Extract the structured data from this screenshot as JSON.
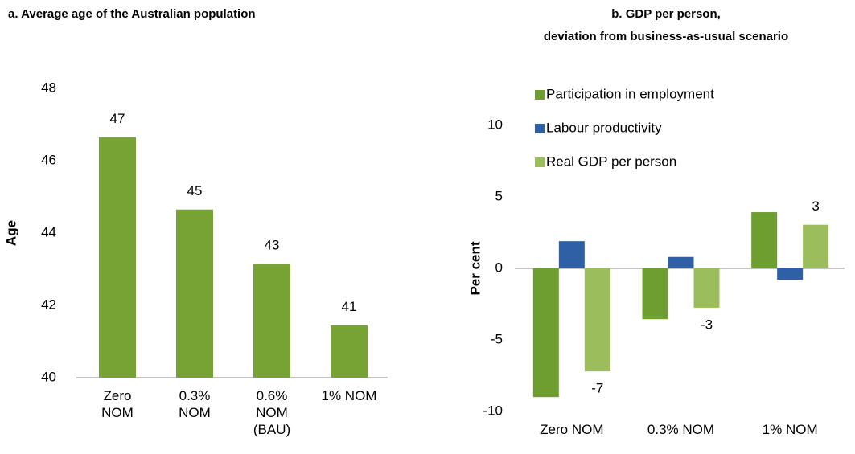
{
  "chart_data": [
    {
      "type": "bar",
      "title": "a. Average age of the Australian population",
      "ylabel": "Age",
      "categories": [
        "Zero NOM",
        "0.3% NOM",
        "0.6% NOM (BAU)",
        "1% NOM"
      ],
      "values": [
        46.65,
        44.65,
        43.15,
        41.45
      ],
      "value_labels": [
        "47",
        "45",
        "43",
        "41"
      ],
      "color": "#77a335",
      "ylim": [
        40,
        48
      ],
      "yticks": [
        40,
        42,
        44,
        46,
        48
      ],
      "grid": false
    },
    {
      "type": "bar",
      "title": "b. GDP per person,",
      "subtitle": "deviation from business-as-usual scenario",
      "ylabel": "Per cent",
      "categories": [
        "Zero NOM",
        "0.3% NOM",
        "1% NOM"
      ],
      "series": [
        {
          "name": "Participation in employment",
          "color": "#6e9d30",
          "values": [
            -9.0,
            -3.55,
            3.93
          ]
        },
        {
          "name": "Labour productivity",
          "color": "#2f5fa4",
          "values": [
            1.9,
            0.8,
            -0.8
          ]
        },
        {
          "name": "Real GDP per person",
          "color": "#9bbd5b",
          "values": [
            -7.2,
            -2.75,
            3.05
          ],
          "value_labels": [
            "-7",
            "-3",
            "3"
          ]
        }
      ],
      "ylim": [
        -10,
        10
      ],
      "yticks": [
        -10,
        -5,
        0,
        5,
        10
      ],
      "grid": false,
      "legend": "upper left"
    }
  ]
}
